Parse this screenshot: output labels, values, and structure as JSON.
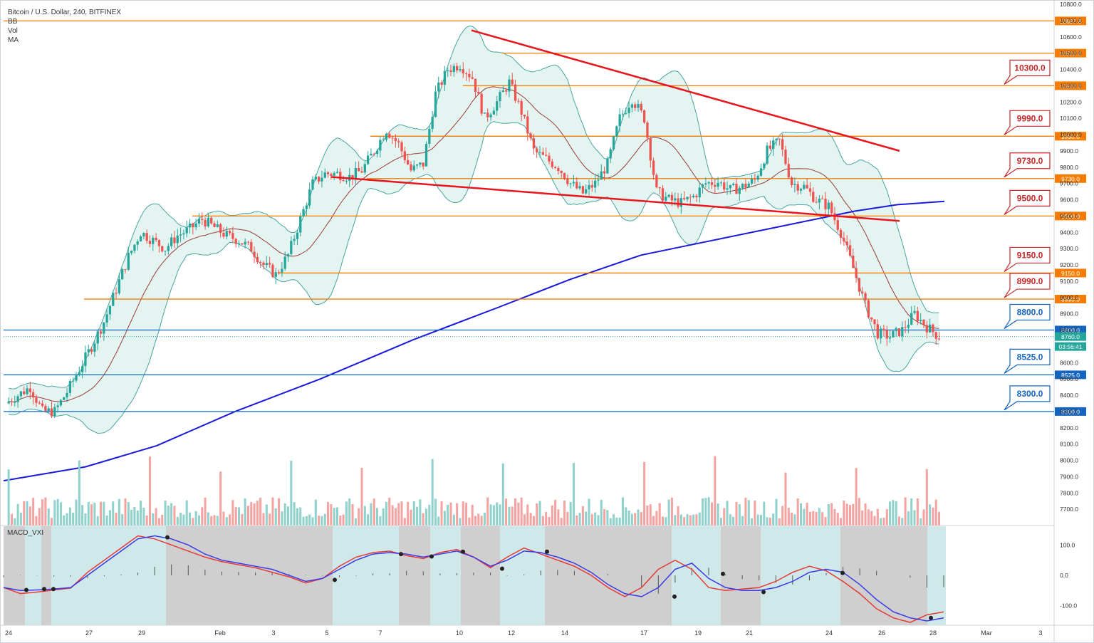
{
  "header": {
    "symbol": "Bitcoin / U.S. Dollar, 240, BITFINEX",
    "indicators": [
      "BB",
      "Vol",
      "MA"
    ]
  },
  "macd_panel": {
    "title": "MACD_VXI",
    "axis": [
      "100.0",
      "0.0",
      "-100.0"
    ]
  },
  "colors": {
    "up": "#26a69a",
    "down": "#ef5350",
    "orange_level": "#f57c00",
    "blue_level": "#1565c0",
    "ma": "#1a1adb",
    "trendline": "#e8161c",
    "bb_fill": "#e3f4f1",
    "macd_fast": "#3a3ae8",
    "macd_slow": "#e53935"
  },
  "chart_data": {
    "type": "candlestick",
    "title": "Bitcoin / U.S. Dollar, 240, BITFINEX",
    "y_range": [
      7600,
      10800
    ],
    "y_ticks": [
      10800,
      10700,
      10600,
      10500,
      10400,
      10300,
      10200,
      10100,
      10000,
      9900,
      9800,
      9700,
      9600,
      9500,
      9400,
      9300,
      9200,
      9100,
      9000,
      8900,
      8800,
      8700,
      8600,
      8500,
      8400,
      8300,
      8200,
      8100,
      8000,
      7900,
      7800,
      7700
    ],
    "x_labels": [
      "24",
      "27",
      "29",
      "Feb",
      "3",
      "5",
      "7",
      "10",
      "12",
      "14",
      "17",
      "19",
      "21",
      "24",
      "26",
      "28",
      "Mar",
      "3"
    ],
    "horizontal_levels": [
      {
        "value": 10697.8,
        "label": "10697.8",
        "color": "orange",
        "callout": ""
      },
      {
        "value": 10500.0,
        "label": "10500.0",
        "color": "orange",
        "callout": ""
      },
      {
        "value": 10300.0,
        "label": "10300.0",
        "color": "orange",
        "callout": "10300.0"
      },
      {
        "value": 9990.0,
        "label": "9990.0",
        "color": "orange",
        "callout": "9990.0"
      },
      {
        "value": 9730.0,
        "label": "9730.0",
        "color": "orange",
        "callout": "9730.0"
      },
      {
        "value": 9500.0,
        "label": "9500.0",
        "color": "orange",
        "callout": "9500.0"
      },
      {
        "value": 9150.0,
        "label": "9150.0",
        "color": "orange",
        "callout": "9150.0"
      },
      {
        "value": 8990.0,
        "label": "8990.0",
        "color": "orange",
        "callout": "8990.0"
      },
      {
        "value": 8800.0,
        "label": "8800.0",
        "color": "blue",
        "callout": "8800.0"
      },
      {
        "value": 8525.0,
        "label": "8525.0",
        "color": "blue",
        "callout": "8525.0"
      },
      {
        "value": 8300.0,
        "label": "8300.0",
        "color": "blue",
        "callout": "8300.0"
      }
    ],
    "current_price": "8760.0",
    "countdown": "03:56:41",
    "price_path": [
      8350,
      8400,
      8450,
      8300,
      8300,
      8420,
      8560,
      8700,
      8850,
      9050,
      9250,
      9400,
      9350,
      9300,
      9380,
      9420,
      9480,
      9430,
      9380,
      9350,
      9300,
      9200,
      9140,
      9260,
      9480,
      9700,
      9760,
      9760,
      9740,
      9780,
      9900,
      10030,
      9940,
      9780,
      9820,
      10250,
      10400,
      10430,
      10350,
      10100,
      10200,
      10320,
      10140,
      9900,
      9850,
      9800,
      9700,
      9640,
      9700,
      9820,
      10100,
      10220,
      10100,
      9650,
      9600,
      9580,
      9620,
      9700,
      9710,
      9660,
      9680,
      9720,
      9900,
      9960,
      9700,
      9680,
      9600,
      9560,
      9400,
      9180,
      8950,
      8780,
      8760,
      8800,
      8900,
      8820,
      8760
    ],
    "macd_range": [
      -150,
      150
    ],
    "macd_fast": [
      -40,
      -50,
      -48,
      -45,
      -40,
      0,
      40,
      80,
      120,
      130,
      120,
      100,
      70,
      50,
      40,
      30,
      20,
      0,
      -20,
      -10,
      20,
      50,
      70,
      75,
      70,
      60,
      70,
      80,
      60,
      30,
      50,
      80,
      75,
      60,
      40,
      10,
      -30,
      -60,
      -70,
      -40,
      20,
      40,
      -10,
      -40,
      -50,
      -50,
      -40,
      -20,
      10,
      20,
      10,
      -30,
      -80,
      -120,
      -140,
      -150,
      -140
    ],
    "macd_slow": [
      -40,
      -60,
      -55,
      -48,
      -42,
      10,
      50,
      90,
      130,
      120,
      100,
      80,
      60,
      45,
      35,
      25,
      10,
      -5,
      -25,
      -10,
      30,
      60,
      75,
      80,
      65,
      55,
      75,
      85,
      60,
      25,
      60,
      90,
      70,
      50,
      30,
      0,
      -40,
      -70,
      -40,
      20,
      50,
      20,
      -40,
      -50,
      -45,
      -40,
      -20,
      10,
      30,
      15,
      -20,
      -60,
      -110,
      -140,
      -155,
      -130,
      -120
    ]
  }
}
